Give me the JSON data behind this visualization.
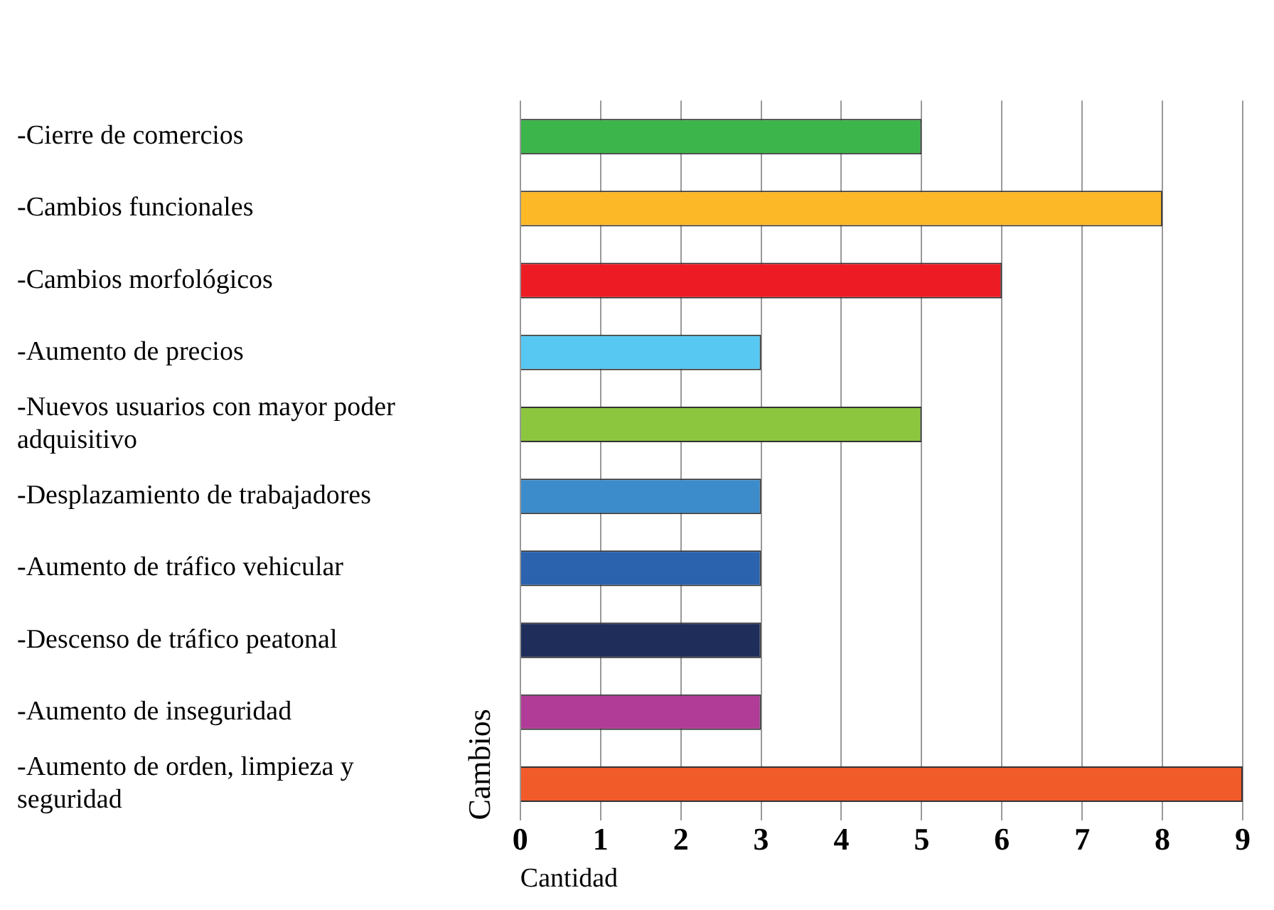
{
  "chart_data": {
    "type": "bar",
    "orientation": "horizontal",
    "xlabel": "Cantidad",
    "ylabel": "Cambios",
    "categories": [
      "-Cierre de comercios",
      "-Cambios funcionales",
      "-Cambios morfológicos",
      "-Aumento de precios",
      "-Nuevos usuarios con mayor poder adquisitivo",
      "-Desplazamiento de trabajadores",
      "-Aumento de tráfico vehicular",
      "-Descenso de tráfico peatonal",
      "-Aumento de inseguridad",
      "-Aumento de orden, limpieza y seguridad"
    ],
    "values": [
      5,
      8,
      6,
      3,
      5,
      3,
      3,
      3,
      3,
      9
    ],
    "colors": [
      "#3cb54a",
      "#fdb827",
      "#ed1c24",
      "#56c8f2",
      "#8cc63f",
      "#3c8ccc",
      "#2b63ae",
      "#1e2d5a",
      "#b03c97",
      "#f15a29"
    ],
    "xlim": [
      0,
      9
    ],
    "xticks": [
      0,
      1,
      2,
      3,
      4,
      5,
      6,
      7,
      8,
      9
    ],
    "grid": "x",
    "legend": false
  }
}
